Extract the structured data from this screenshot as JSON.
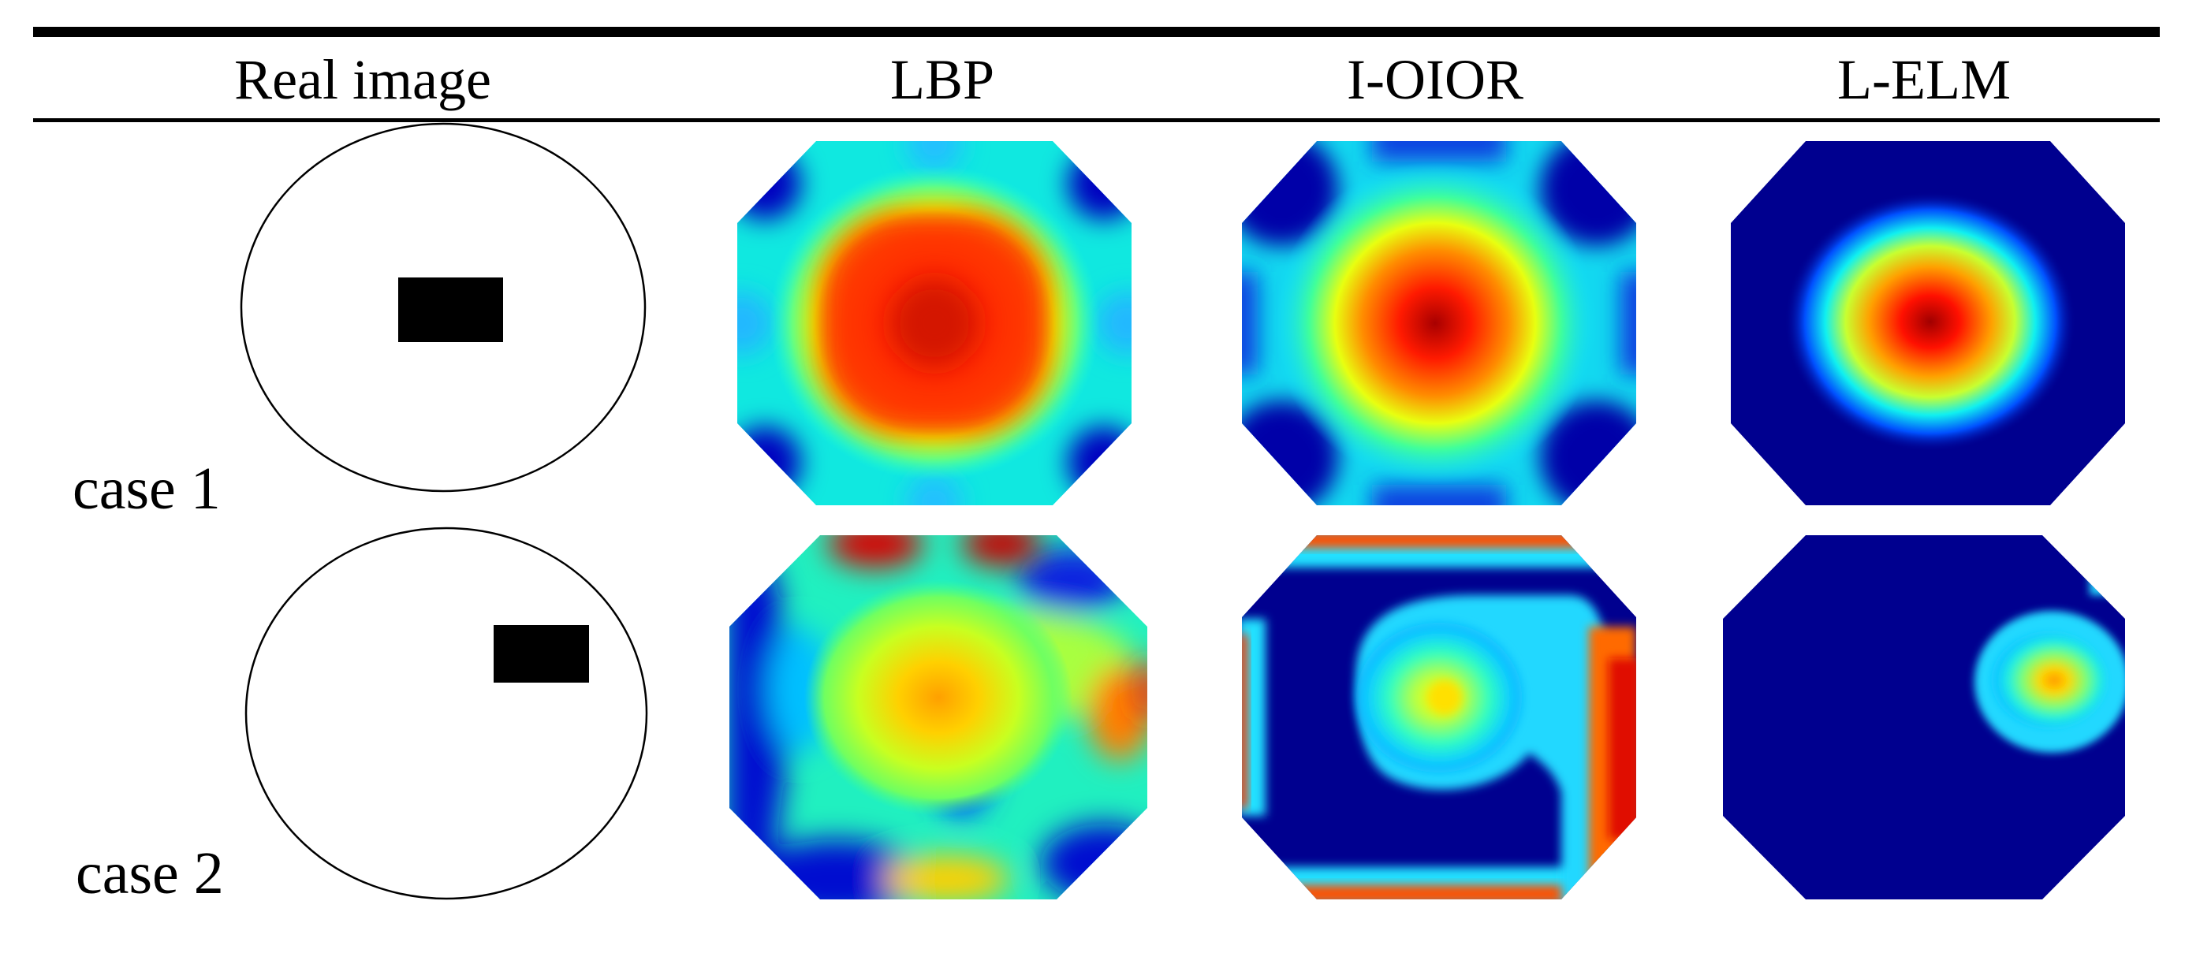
{
  "figure": {
    "columns": [
      "Real image",
      "LBP",
      "I-OIOR",
      "L-ELM"
    ],
    "rows": [
      {
        "label": "case 1"
      },
      {
        "label": "case 2"
      }
    ],
    "colors": {
      "background": "#00008f",
      "low": "#0000bf",
      "cyan": "#00e8f0",
      "green": "#66ff80",
      "yellow": "#ffee00",
      "red": "#ff1000",
      "dark_red": "#a00000",
      "ink": "#000000"
    }
  }
}
